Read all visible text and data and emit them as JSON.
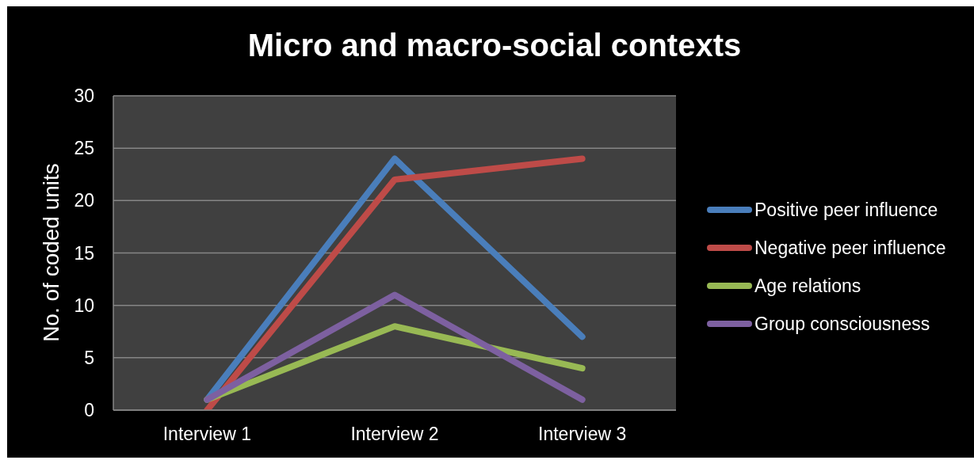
{
  "chart_data": {
    "type": "line",
    "title": "Micro and macro-social contexts",
    "ylabel": "No. of coded units",
    "categories": [
      "Interview 1",
      "Interview 2",
      "Interview 3"
    ],
    "series": [
      {
        "name": "Positive peer influence",
        "color": "#4a7ebb",
        "values": [
          1,
          24,
          7
        ]
      },
      {
        "name": "Negative peer influence",
        "color": "#be4b48",
        "values": [
          0,
          22,
          24
        ]
      },
      {
        "name": "Age relations",
        "color": "#98b954",
        "values": [
          1,
          8,
          4
        ]
      },
      {
        "name": "Group consciousness",
        "color": "#7d60a0",
        "values": [
          1,
          11,
          1
        ]
      }
    ],
    "ylim": [
      0,
      30
    ],
    "yticks": [
      0,
      5,
      10,
      15,
      20,
      25,
      30
    ],
    "grid": "y",
    "legend": "right",
    "line_style": "solid"
  }
}
